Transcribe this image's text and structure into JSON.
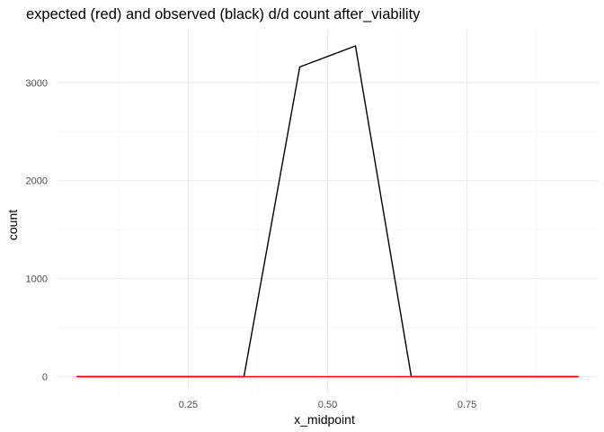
{
  "chart_data": {
    "type": "line",
    "title": "expected (red) and observed (black) d/d count after_viability",
    "xlabel": "x_midpoint",
    "ylabel": "count",
    "xlim": [
      0.014,
      0.986
    ],
    "ylim": [
      -170,
      3540
    ],
    "x_ticks": [
      0.25,
      0.5,
      0.75
    ],
    "x_tick_labels": [
      "0.25",
      "0.50",
      "0.75"
    ],
    "x_minor_ticks": [
      0.125,
      0.375,
      0.625,
      0.875
    ],
    "y_ticks": [
      0,
      1000,
      2000,
      3000
    ],
    "y_tick_labels": [
      "0",
      "1000",
      "2000",
      "3000"
    ],
    "y_minor_ticks": [
      500,
      1500,
      2500
    ],
    "grid": true,
    "legend": "none",
    "series": [
      {
        "color": "#000000",
        "x": [
          0.05,
          0.15,
          0.25,
          0.35,
          0.45,
          0.55,
          0.65,
          0.75,
          0.85,
          0.95
        ],
        "y": [
          0,
          0,
          0,
          0,
          3160,
          3375,
          0,
          0,
          0,
          0
        ]
      },
      {
        "color": "#ff0000",
        "x": [
          0.05,
          0.15,
          0.25,
          0.35,
          0.45,
          0.55,
          0.65,
          0.75,
          0.85,
          0.95
        ],
        "y": [
          0,
          0,
          0,
          0,
          0,
          0,
          0,
          0,
          0,
          0
        ]
      }
    ]
  }
}
